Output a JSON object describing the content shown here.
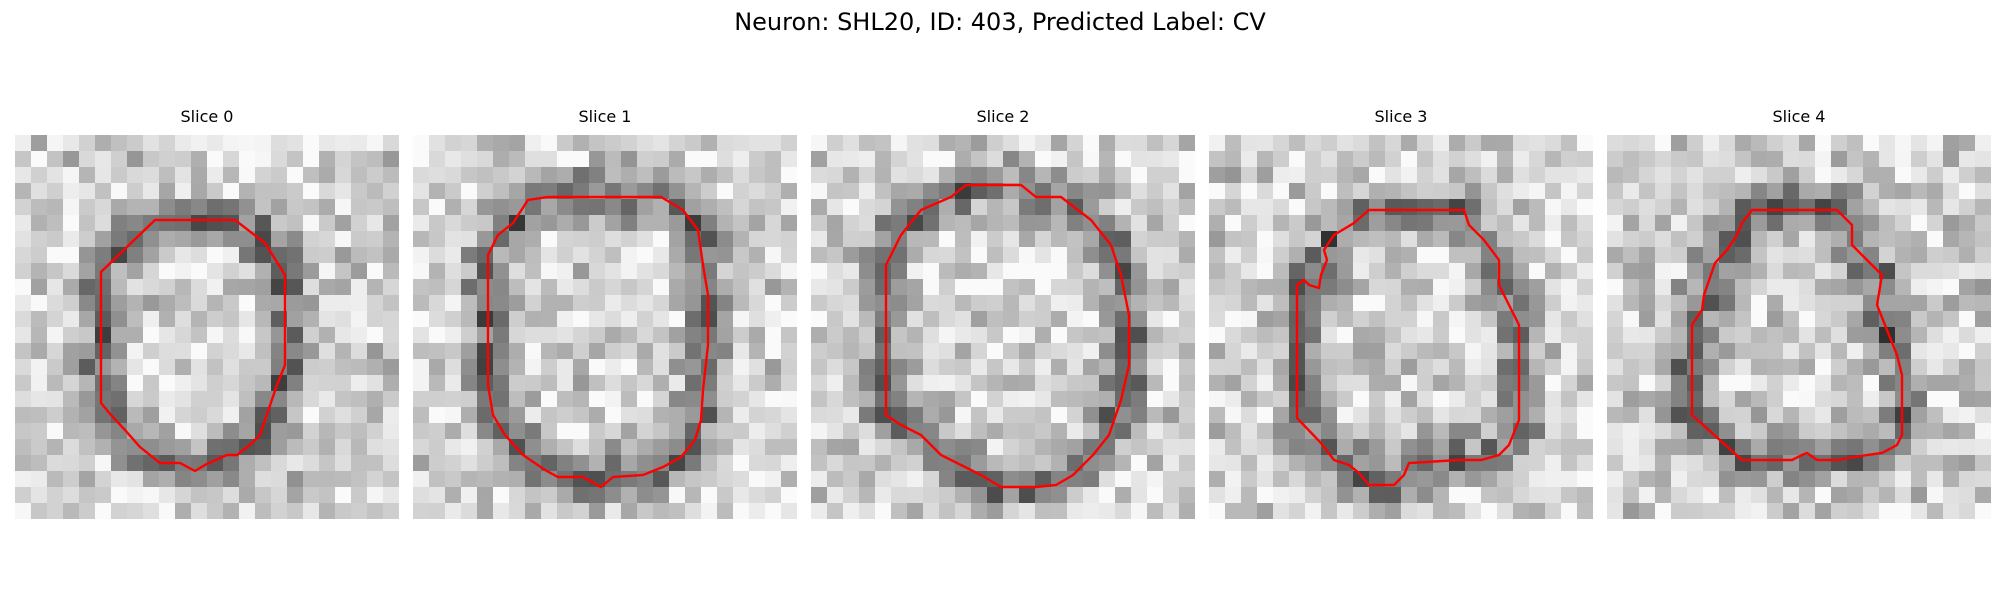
{
  "figure": {
    "title": "Neuron: SHL20, ID: 403, Predicted Label: CV"
  },
  "panels": [
    {
      "title": "Slice 0",
      "seed": 11,
      "contour_color": "#ff0000"
    },
    {
      "title": "Slice 1",
      "seed": 23,
      "contour_color": "#ff0000"
    },
    {
      "title": "Slice 2",
      "seed": 37,
      "contour_color": "#ff0000"
    },
    {
      "title": "Slice 3",
      "seed": 51,
      "contour_color": "#ff0000"
    },
    {
      "title": "Slice 4",
      "seed": 67,
      "contour_color": "#ff0000"
    }
  ],
  "colormap": "gray"
}
